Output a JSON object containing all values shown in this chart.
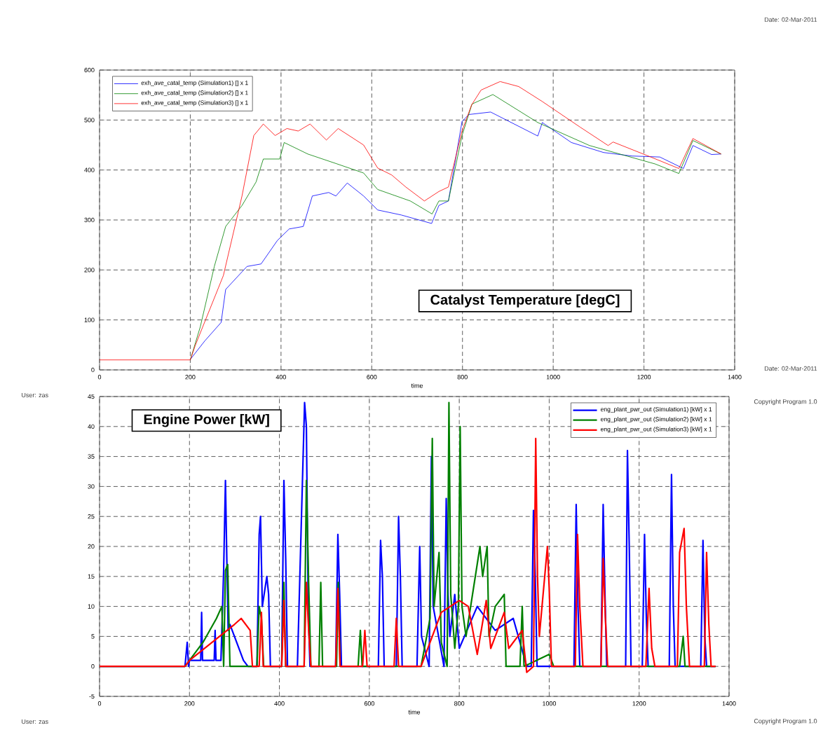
{
  "chart_data": [
    {
      "type": "line",
      "title": "Catalyst  Temperature [degC]",
      "xlabel": "time",
      "xlim": [
        0,
        1400
      ],
      "ylim": [
        0,
        600
      ],
      "xticks": [
        0,
        200,
        400,
        600,
        800,
        1000,
        1200,
        1400
      ],
      "yticks": [
        0,
        100,
        200,
        300,
        400,
        500,
        600
      ],
      "grid": true,
      "legend": "top left",
      "marker": "none",
      "line_style": "solid",
      "annotations": [
        "Date: 02-Mar-2011",
        "User: zas",
        "Copyright Program 1.0"
      ],
      "series": [
        {
          "name": "exh_ave_catal_temp (Simulation1) [] x 1",
          "color": "#0000ff",
          "x": [
            200,
            232,
            268,
            278,
            325,
            356,
            392,
            418,
            449,
            469,
            505,
            521,
            546,
            582,
            613,
            665,
            732,
            748,
            769,
            799,
            814,
            862,
            966,
            976,
            1040,
            1111,
            1174,
            1235,
            1287,
            1308,
            1349,
            1370
          ],
          "values": [
            21,
            58,
            95,
            161,
            207,
            212,
            259,
            282,
            287,
            348,
            355,
            348,
            374,
            348,
            320,
            310,
            293,
            329,
            338,
            497,
            511,
            516,
            468,
            495,
            455,
            435,
            428,
            426,
            403,
            449,
            431,
            432
          ]
        },
        {
          "name": "exh_ave_catal_temp (Simulation2) [] x 1",
          "color": "#008000",
          "x": [
            200,
            222,
            253,
            278,
            314,
            345,
            361,
            397,
            407,
            459,
            521,
            582,
            613,
            685,
            733,
            748,
            769,
            799,
            821,
            867,
            966,
            1080,
            1225,
            1277,
            1308,
            1370
          ],
          "values": [
            20,
            86,
            207,
            287,
            329,
            376,
            422,
            422,
            455,
            432,
            413,
            394,
            361,
            338,
            312,
            338,
            338,
            469,
            532,
            551,
            495,
            449,
            412,
            393,
            459,
            432
          ]
        },
        {
          "name": "exh_ave_catal_temp (Simulation3) [] x 1",
          "color": "#ff0000",
          "x": [
            0,
            200,
            211,
            273,
            314,
            340,
            361,
            387,
            413,
            438,
            464,
            500,
            526,
            582,
            613,
            644,
            675,
            716,
            748,
            769,
            799,
            820,
            841,
            883,
            924,
            976,
            1059,
            1121,
            1132,
            1215,
            1277,
            1308,
            1370
          ],
          "values": [
            20,
            20,
            49,
            189,
            348,
            469,
            492,
            469,
            483,
            478,
            492,
            460,
            483,
            450,
            404,
            390,
            366,
            338,
            357,
            366,
            478,
            530,
            560,
            577,
            567,
            537,
            486,
            449,
            456,
            426,
            403,
            463,
            432
          ]
        }
      ]
    },
    {
      "type": "line",
      "title": "Engine Power [kW]",
      "xlabel": "time",
      "xlim": [
        0,
        1400
      ],
      "ylim": [
        -5,
        45
      ],
      "xticks": [
        0,
        200,
        400,
        600,
        800,
        1000,
        1200,
        1400
      ],
      "yticks": [
        -5,
        0,
        5,
        10,
        15,
        20,
        25,
        30,
        35,
        40,
        45
      ],
      "grid": true,
      "legend": "top right",
      "marker": "none",
      "line_style": "solid",
      "annotations": [
        "Date: 02-Mar-2011",
        "User: zas",
        "Copyright Program 1.0"
      ],
      "series": [
        {
          "name": "eng_plant_pwr_out (Simulation1) [kW] x 1",
          "color": "#0000ff",
          "x": [
            0,
            190,
            195,
            198,
            200,
            225,
            227,
            229,
            255,
            257,
            259,
            270,
            276,
            280,
            283,
            286,
            290,
            300,
            320,
            330,
            350,
            355,
            358,
            362,
            372,
            376,
            380,
            405,
            410,
            414,
            418,
            440,
            456,
            460,
            464,
            468,
            525,
            530,
            534,
            538,
            620,
            625,
            629,
            633,
            660,
            665,
            669,
            673,
            706,
            712,
            716,
            733,
            738,
            742,
            766,
            771,
            775,
            779,
            790,
            800,
            840,
            880,
            920,
            950,
            960,
            965,
            969,
            973,
            1055,
            1060,
            1064,
            1068,
            1115,
            1120,
            1124,
            1128,
            1170,
            1174,
            1178,
            1182,
            1207,
            1212,
            1216,
            1220,
            1267,
            1272,
            1276,
            1280,
            1337,
            1342,
            1346,
            1350,
            1370
          ],
          "values": [
            0,
            0,
            4,
            0,
            1,
            1,
            9,
            1,
            1,
            6,
            1,
            1,
            16,
            31,
            18,
            6,
            7,
            5,
            1,
            0,
            0,
            22,
            25,
            10,
            15,
            12,
            0,
            0,
            31,
            18,
            0,
            0,
            44,
            40,
            10,
            0,
            0,
            22,
            12,
            0,
            0,
            21,
            15,
            0,
            0,
            25,
            15,
            0,
            0,
            20,
            5,
            0,
            35,
            10,
            0,
            28,
            12,
            5,
            12,
            3,
            10,
            6,
            8,
            0,
            0,
            26,
            15,
            0,
            0,
            27,
            10,
            0,
            0,
            27,
            12,
            0,
            0,
            36,
            20,
            0,
            0,
            22,
            8,
            0,
            0,
            32,
            10,
            0,
            0,
            21,
            5,
            0,
            0
          ]
        },
        {
          "name": "eng_plant_pwr_out (Simulation2) [kW] x 1",
          "color": "#008000",
          "x": [
            0,
            190,
            200,
            230,
            260,
            272,
            276,
            280,
            285,
            290,
            350,
            355,
            360,
            365,
            405,
            410,
            414,
            455,
            460,
            465,
            470,
            488,
            492,
            496,
            527,
            531,
            535,
            575,
            580,
            584,
            715,
            735,
            740,
            744,
            755,
            760,
            773,
            777,
            781,
            790,
            798,
            802,
            806,
            815,
            846,
            852,
            862,
            866,
            880,
            900,
            904,
            935,
            940,
            944,
            1000,
            1010,
            1290,
            1298,
            1302,
            1370
          ],
          "values": [
            0,
            0,
            1,
            4,
            8,
            10,
            0,
            16,
            17,
            0,
            0,
            10,
            8,
            0,
            0,
            14,
            0,
            0,
            31,
            14,
            0,
            0,
            14,
            0,
            0,
            14,
            0,
            0,
            6,
            0,
            0,
            8,
            38,
            10,
            19,
            4,
            0,
            44,
            12,
            3,
            10,
            40,
            10,
            5,
            20,
            15,
            20,
            5,
            10,
            12,
            0,
            0,
            10,
            0,
            2,
            0,
            0,
            5,
            0,
            0
          ]
        },
        {
          "name": "eng_plant_pwr_out (Simulation3) [kW] x 1",
          "color": "#ff0000",
          "x": [
            0,
            190,
            200,
            250,
            300,
            315,
            335,
            340,
            355,
            360,
            364,
            405,
            410,
            414,
            455,
            460,
            465,
            470,
            525,
            530,
            535,
            585,
            590,
            595,
            655,
            660,
            665,
            715,
            760,
            780,
            800,
            820,
            840,
            860,
            870,
            900,
            910,
            940,
            950,
            965,
            970,
            974,
            978,
            996,
            1000,
            1005,
            1058,
            1063,
            1068,
            1075,
            1115,
            1120,
            1125,
            1130,
            1215,
            1222,
            1228,
            1235,
            1285,
            1290,
            1300,
            1305,
            1312,
            1345,
            1350,
            1355,
            1360,
            1370
          ],
          "values": [
            0,
            0,
            1,
            4,
            7,
            8,
            6,
            0,
            0,
            9,
            0,
            0,
            11,
            0,
            0,
            14,
            6,
            0,
            0,
            13,
            0,
            0,
            6,
            0,
            0,
            8,
            0,
            0,
            9,
            10,
            11,
            10,
            2,
            11,
            3,
            9,
            3,
            6,
            -1,
            0,
            38,
            15,
            5,
            20,
            13,
            0,
            0,
            22,
            10,
            0,
            0,
            18,
            8,
            0,
            0,
            13,
            3,
            0,
            0,
            19,
            23,
            10,
            0,
            0,
            19,
            7,
            0,
            0
          ]
        }
      ]
    }
  ]
}
